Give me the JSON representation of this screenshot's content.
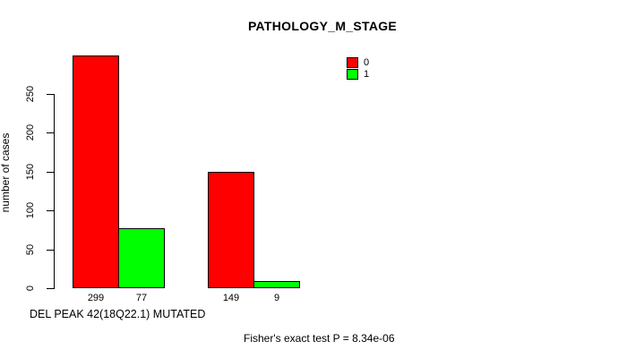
{
  "title": "PATHOLOGY_M_STAGE",
  "chart_data": {
    "type": "bar",
    "title": "PATHOLOGY_M_STAGE",
    "categories": [
      "",
      ""
    ],
    "series": [
      {
        "name": "0",
        "color": "#ff0000",
        "values": [
          299,
          149
        ]
      },
      {
        "name": "1",
        "color": "#00ff00",
        "values": [
          77,
          9
        ]
      }
    ],
    "bar_value_labels": [
      [
        299,
        77
      ],
      [
        149,
        9
      ]
    ],
    "ylabel": "number of cases",
    "xlabel": "DEL PEAK 42(18Q22.1) MUTATED",
    "yticks": [
      0,
      50,
      100,
      150,
      200,
      250
    ],
    "ylim": [
      0,
      310
    ],
    "grid": false,
    "legend_position": "top-right",
    "legend_entries": [
      "0",
      "1"
    ],
    "annotation": "Fisher's exact test P = 8.34e-06"
  },
  "footer": {
    "annotation": "Fisher's exact test P = 8.34e-06"
  }
}
